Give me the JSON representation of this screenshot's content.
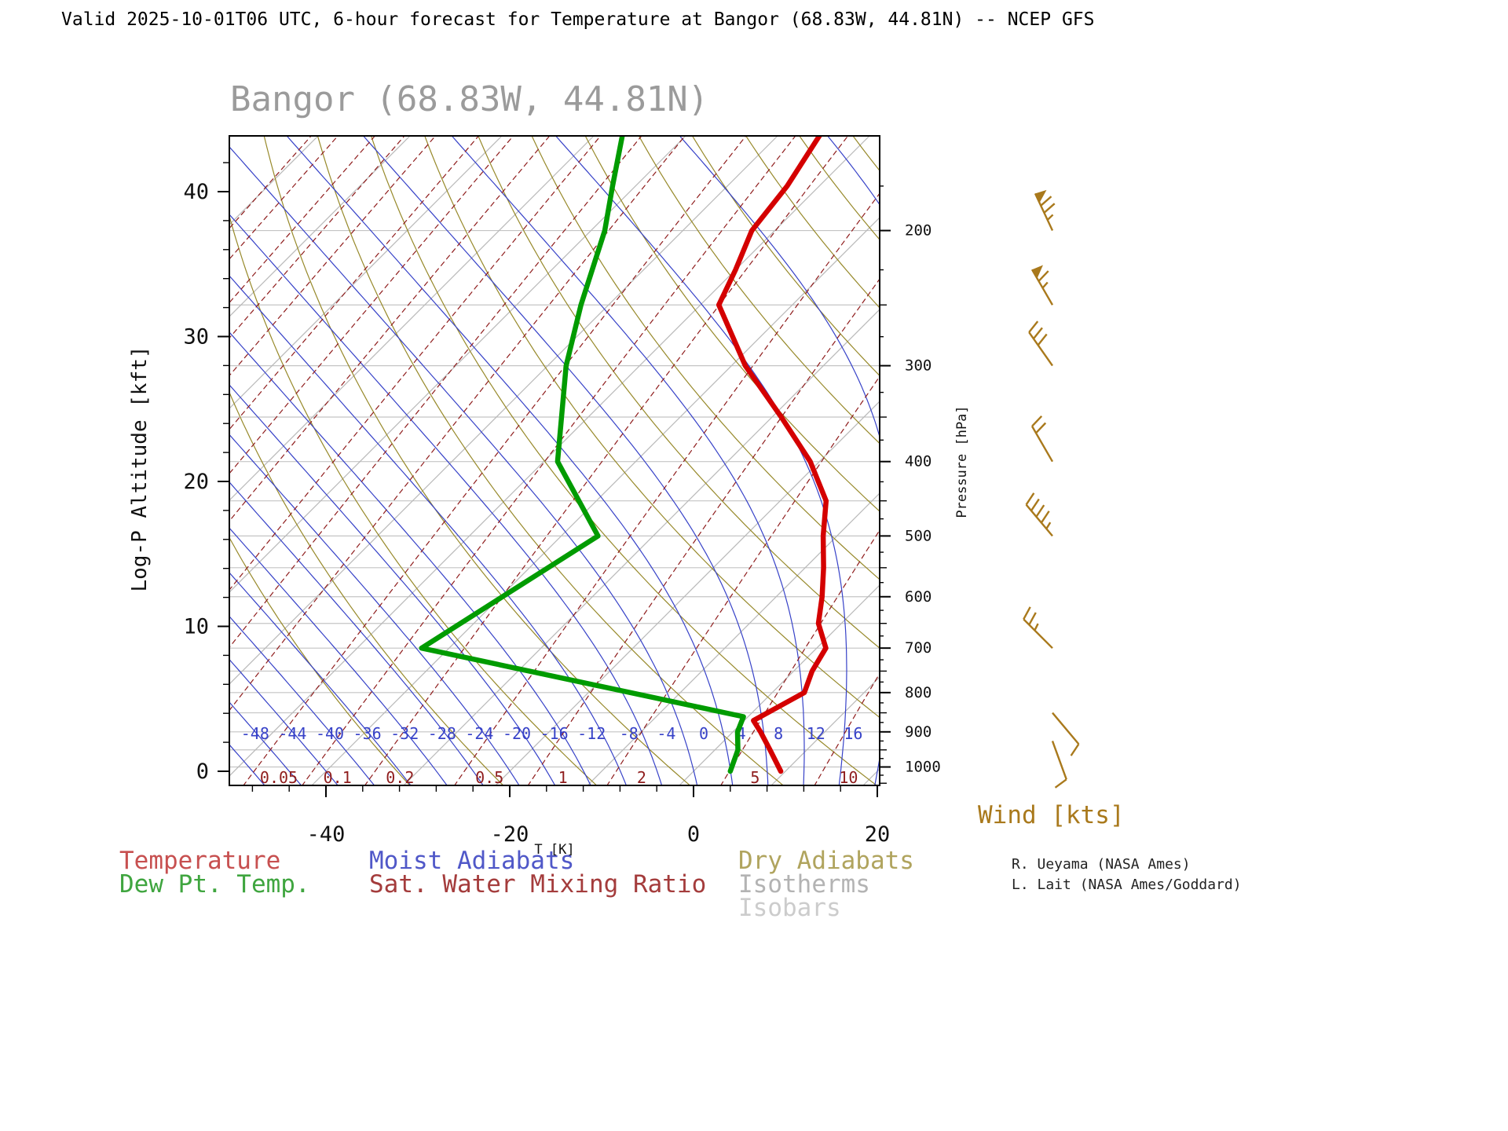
{
  "header": {
    "title": "Valid 2025-10-01T06 UTC, 6-hour forecast for Temperature at Bangor (68.83W, 44.81N) -- NCEP GFS"
  },
  "chart": {
    "title": "Bangor (68.83W, 44.81N)"
  },
  "axes": {
    "left": {
      "label": "Log-P Altitude [kft]",
      "ticks": [
        0,
        10,
        20,
        30,
        40
      ]
    },
    "right": {
      "label": "Pressure [hPa]",
      "ticks": [
        200,
        300,
        400,
        500,
        600,
        700,
        800,
        900,
        1000
      ]
    },
    "bottom": {
      "label": "T [K]",
      "ticks": [
        -40,
        -20,
        0,
        20
      ]
    }
  },
  "legend": {
    "temperature": "Temperature",
    "dewpoint": "Dew Pt. Temp.",
    "moist_adiabats": "Moist Adiabats",
    "mixing_ratio": "Sat. Water Mixing Ratio",
    "dry_adiabats": "Dry Adiabats",
    "isotherms": "Isotherms",
    "isobars": "Isobars"
  },
  "wind": {
    "label": "Wind [kts]"
  },
  "credits": [
    "R. Ueyama (NASA Ames)",
    "L. Lait (NASA Ames/Goddard)"
  ],
  "colors": {
    "temperature": "#d40000",
    "dewpoint": "#009b00",
    "moist_adiabat": "#3742c8",
    "mixing_ratio": "#8f1d1d",
    "dry_adiabat": "#97892a",
    "isotherm": "#b9b9b9",
    "isobar": "#c4c4c4",
    "wind": "#a9791c",
    "chart_title": "#9b9b9b",
    "legend_temperature": "#c75050",
    "legend_dewpoint": "#3fa53f",
    "legend_moist": "#5058c8",
    "legend_mixing": "#a43c3c",
    "legend_dry": "#b0a45e",
    "legend_isotherm": "#b3b3b3",
    "legend_isobar": "#cccccc"
  },
  "chart_data": {
    "type": "skewt_log_p_sounding",
    "title": "Bangor (68.83W, 44.81N)",
    "location": {
      "name": "Bangor",
      "lon": "68.83W",
      "lat": "44.81N"
    },
    "valid_time": "2025-10-01T06 UTC",
    "forecast": "6-hour forecast for Temperature",
    "model": "NCEP GFS",
    "x_axis": {
      "label": "T [K]",
      "ticks": [
        -40,
        -20,
        0,
        20
      ]
    },
    "y_axis_left": {
      "label": "Log-P Altitude [kft]",
      "ticks": [
        0,
        10,
        20,
        30,
        40
      ]
    },
    "y_axis_right": {
      "label": "Pressure [hPa]",
      "ticks": [
        200,
        300,
        400,
        500,
        600,
        700,
        800,
        900,
        1000
      ]
    },
    "temperature_profile": {
      "pressure_hPa": [
        1013,
        950,
        900,
        870,
        800,
        750,
        700,
        650,
        600,
        550,
        500,
        450,
        400,
        350,
        300,
        250,
        225,
        200,
        175,
        150
      ],
      "temp_C": [
        9.5,
        6.0,
        3.0,
        1.0,
        3.5,
        2.0,
        1.0,
        -2.5,
        -5.0,
        -8.0,
        -11.5,
        -15.0,
        -21.0,
        -29.0,
        -38.5,
        -48.0,
        -50.0,
        -52.5,
        -53.5,
        -55.5
      ]
    },
    "dewpoint_profile": {
      "pressure_hPa": [
        1013,
        950,
        900,
        860,
        700,
        500,
        400,
        300,
        250,
        200,
        175,
        150
      ],
      "temp_C": [
        4.0,
        2.5,
        0.5,
        -0.5,
        -43.0,
        -36.0,
        -48.5,
        -58.0,
        -63.0,
        -68.5,
        -72.5,
        -77.0
      ]
    },
    "moist_adiabat_labels_C": [
      -48,
      -44,
      -40,
      -36,
      -32,
      -28,
      -24,
      -20,
      -16,
      -12,
      -8,
      -4,
      0,
      4,
      8,
      12,
      16
    ],
    "mixing_ratio_labels_g_kg": [
      0.05,
      0.1,
      0.2,
      0.5,
      1,
      2,
      5,
      10
    ],
    "wind_barbs": [
      {
        "pressure_hPa": 200,
        "speed_kts": 75,
        "dir_deg": 335
      },
      {
        "pressure_hPa": 250,
        "speed_kts": 65,
        "dir_deg": 330
      },
      {
        "pressure_hPa": 300,
        "speed_kts": 30,
        "dir_deg": 325
      },
      {
        "pressure_hPa": 400,
        "speed_kts": 20,
        "dir_deg": 330
      },
      {
        "pressure_hPa": 500,
        "speed_kts": 45,
        "dir_deg": 320
      },
      {
        "pressure_hPa": 700,
        "speed_kts": 25,
        "dir_deg": 315
      },
      {
        "pressure_hPa": 850,
        "speed_kts": 10,
        "dir_deg": 140
      },
      {
        "pressure_hPa": 925,
        "speed_kts": 10,
        "dir_deg": 160
      }
    ],
    "background": {
      "isobar_lines_hPa": [
        200,
        250,
        300,
        350,
        400,
        450,
        500,
        550,
        600,
        650,
        700,
        750,
        800,
        850,
        900,
        950,
        1000
      ],
      "isotherm_lines_C": {
        "min": -150,
        "max": 20,
        "step": 10
      },
      "dry_adiabat_theta_K": {
        "min": 240,
        "max": 400,
        "step": 10
      },
      "moist_adiabat_thetaw_C": {
        "min": -60,
        "max": 40,
        "step": 4
      },
      "mixing_ratio_lines_g_kg": [
        1e-05,
        2e-05,
        5e-05,
        0.0001,
        0.0002,
        0.0005,
        0.001,
        0.002,
        0.005,
        0.01,
        0.02,
        0.05,
        0.1,
        0.2,
        0.5,
        1,
        2,
        5,
        10,
        20
      ]
    }
  }
}
